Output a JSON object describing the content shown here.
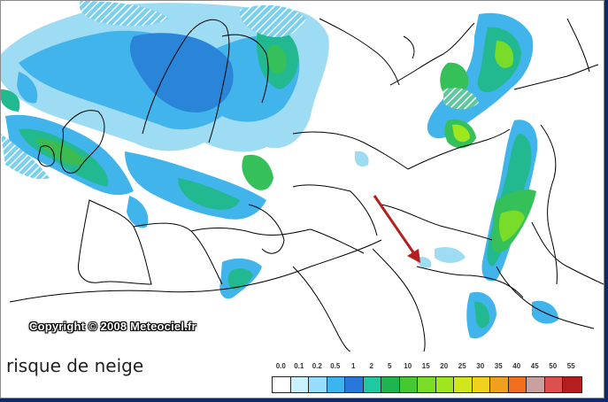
{
  "map": {
    "copyright": "Copyright © 2008 Meteociel.fr",
    "legend_title": "risque de neige",
    "scale_labels": [
      "0.0",
      "0.1",
      "0.2",
      "0.5",
      "1",
      "2",
      "5",
      "10",
      "15",
      "20",
      "25",
      "30",
      "35",
      "40",
      "45",
      "50",
      "55"
    ],
    "scale_colors": [
      "#ffffff",
      "#c8f0ff",
      "#96dcff",
      "#3cb4f0",
      "#2878dc",
      "#1ec8a0",
      "#1eb450",
      "#46c832",
      "#78dc28",
      "#a0e61e",
      "#d2e61e",
      "#f0d21e",
      "#f0a01e",
      "#f06e1e",
      "#c8a0a0",
      "#dc5050",
      "#b41e1e"
    ],
    "arrow_color": "#b41e1e"
  }
}
